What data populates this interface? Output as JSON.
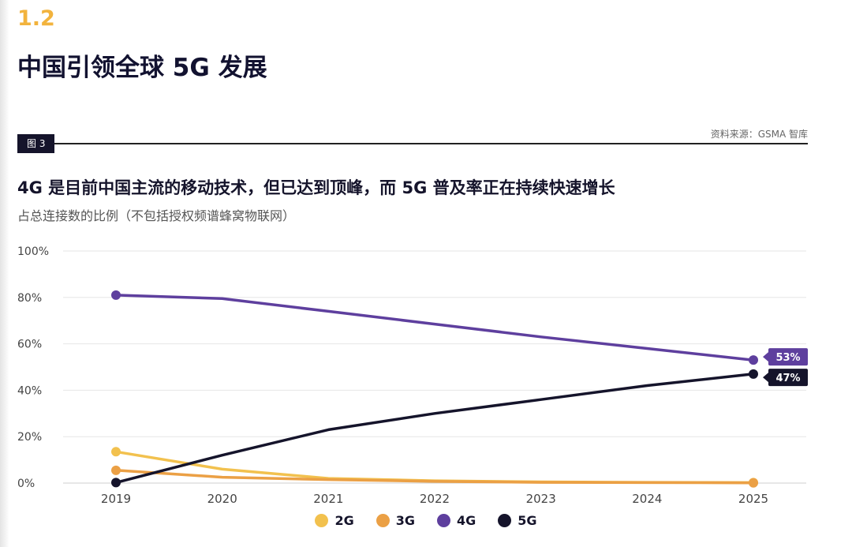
{
  "section_number": "1.2",
  "page_title": "中国引领全球 5G 发展",
  "figure_label": "图 3",
  "source": "资料来源：GSMA 智库",
  "chart_data": {
    "type": "line",
    "title": "4G 是目前中国主流的移动技术，但已达到顶峰，而 5G 普及率正在持续快速增长",
    "subtitle": "占总连接数的比例（不包括授权频谱蜂窝物联网）",
    "xlabel": "",
    "ylabel": "",
    "x": [
      "2019",
      "2020",
      "2021",
      "2022",
      "2023",
      "2024",
      "2025"
    ],
    "ylim": [
      0,
      100
    ],
    "yticks": [
      0,
      20,
      40,
      60,
      80,
      100
    ],
    "ytick_labels": [
      "0%",
      "20%",
      "40%",
      "60%",
      "80%",
      "100%"
    ],
    "grid": true,
    "legend_position": "bottom-center",
    "series": [
      {
        "name": "2G",
        "color": "#f2c14e",
        "values": [
          13.5,
          6,
          2,
          1,
          0.5,
          0.3,
          0.2
        ]
      },
      {
        "name": "3G",
        "color": "#eba045",
        "values": [
          5.5,
          2.5,
          1.5,
          0.7,
          0.3,
          0.2,
          0.1
        ]
      },
      {
        "name": "4G",
        "color": "#5e3f9e",
        "values": [
          81,
          79.5,
          74,
          68.5,
          63,
          58,
          53
        ]
      },
      {
        "name": "5G",
        "color": "#15142b",
        "values": [
          0.2,
          12,
          23,
          30,
          36,
          42,
          47
        ]
      }
    ],
    "end_labels": [
      {
        "series": "4G",
        "text": "53%"
      },
      {
        "series": "5G",
        "text": "47%"
      }
    ]
  }
}
